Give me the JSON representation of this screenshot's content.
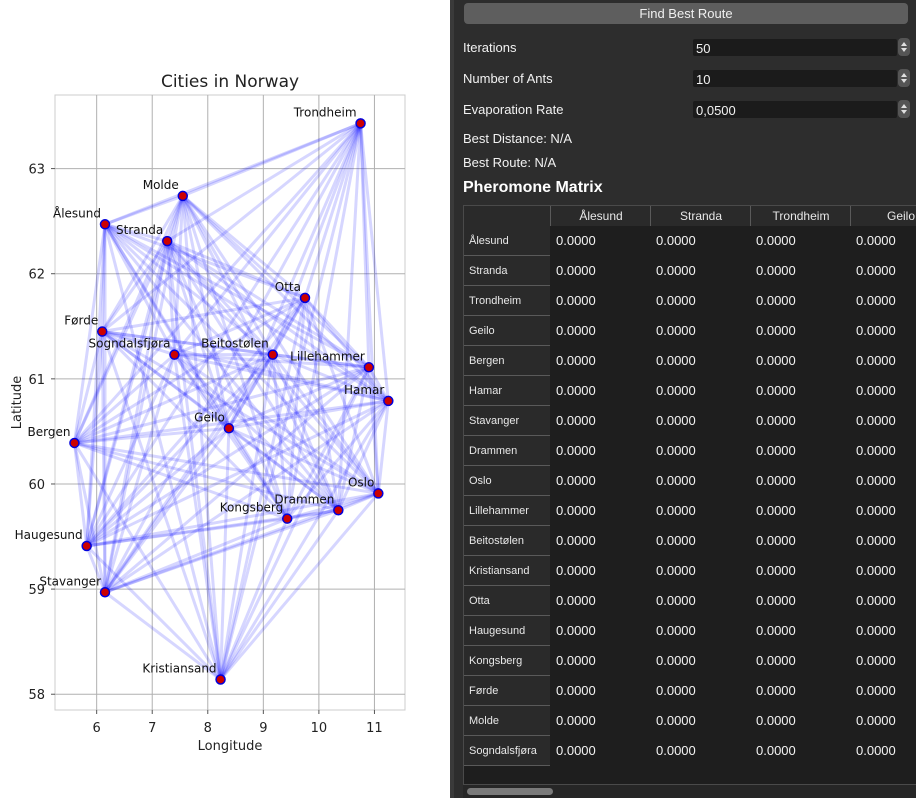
{
  "chart_data": {
    "type": "scatter",
    "title": "Cities in Norway",
    "xlabel": "Longitude",
    "ylabel": "Latitude",
    "xlim": [
      5.25,
      11.55
    ],
    "ylim": [
      57.85,
      63.7
    ],
    "xticks": [
      6,
      7,
      8,
      9,
      10,
      11
    ],
    "yticks": [
      58,
      59,
      60,
      61,
      62,
      63
    ],
    "grid": true,
    "cities": [
      {
        "name": "Ålesund",
        "lon": 6.15,
        "lat": 62.47
      },
      {
        "name": "Stranda",
        "lon": 7.27,
        "lat": 62.31
      },
      {
        "name": "Trondheim",
        "lon": 10.75,
        "lat": 63.43
      },
      {
        "name": "Geilo",
        "lon": 8.38,
        "lat": 60.53
      },
      {
        "name": "Bergen",
        "lon": 5.6,
        "lat": 60.39
      },
      {
        "name": "Hamar",
        "lon": 11.25,
        "lat": 60.79
      },
      {
        "name": "Stavanger",
        "lon": 6.15,
        "lat": 58.97
      },
      {
        "name": "Drammen",
        "lon": 10.35,
        "lat": 59.75
      },
      {
        "name": "Oslo",
        "lon": 11.07,
        "lat": 59.91
      },
      {
        "name": "Lillehammer",
        "lon": 10.9,
        "lat": 61.11
      },
      {
        "name": "Beitostølen",
        "lon": 9.17,
        "lat": 61.23
      },
      {
        "name": "Kristiansand",
        "lon": 8.23,
        "lat": 58.14
      },
      {
        "name": "Otta",
        "lon": 9.75,
        "lat": 61.77
      },
      {
        "name": "Haugesund",
        "lon": 5.82,
        "lat": 59.41
      },
      {
        "name": "Kongsberg",
        "lon": 9.43,
        "lat": 59.67
      },
      {
        "name": "Førde",
        "lon": 6.1,
        "lat": 61.45
      },
      {
        "name": "Molde",
        "lon": 7.55,
        "lat": 62.74
      },
      {
        "name": "Sogndalsfjøra",
        "lon": 7.4,
        "lat": 61.23
      }
    ],
    "edge_color": "#0000ff",
    "point_color": "#cc0000",
    "point_edge_color": "#0000dd"
  },
  "controls": {
    "find_button": "Find Best Route",
    "iterations_label": "Iterations",
    "iterations_value": "50",
    "ants_label": "Number of Ants",
    "ants_value": "10",
    "evaporation_label": "Evaporation Rate",
    "evaporation_value": "0,0500",
    "best_distance": "Best Distance: N/A",
    "best_route": "Best Route: N/A"
  },
  "matrix": {
    "title": "Pheromone Matrix",
    "visible_columns": [
      "Ålesund",
      "Stranda",
      "Trondheim",
      "Geilo"
    ],
    "rows": [
      "Ålesund",
      "Stranda",
      "Trondheim",
      "Geilo",
      "Bergen",
      "Hamar",
      "Stavanger",
      "Drammen",
      "Oslo",
      "Lillehammer",
      "Beitostølen",
      "Kristiansand",
      "Otta",
      "Haugesund",
      "Kongsberg",
      "Førde",
      "Molde",
      "Sogndalsfjøra"
    ],
    "cell_value": "0.0000"
  }
}
